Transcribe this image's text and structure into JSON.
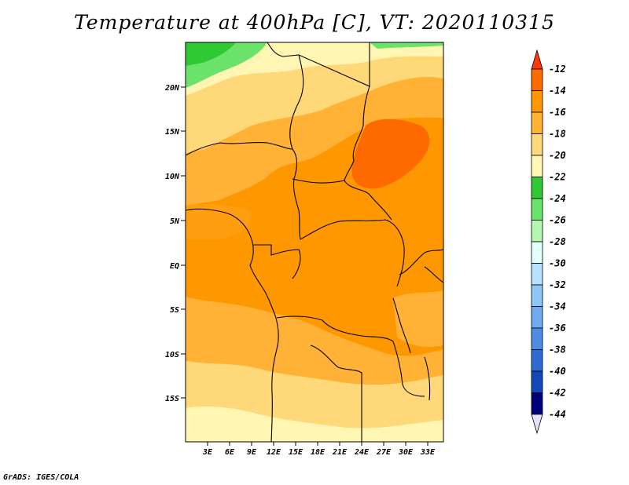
{
  "title": "Temperature at 400hPa [C], VT: 2020110315",
  "credit": "GrADS: IGES/COLA",
  "map": {
    "lat_labels": [
      "20N",
      "15N",
      "10N",
      "5N",
      "EQ",
      "5S",
      "10S",
      "15S"
    ],
    "lon_labels": [
      "3E",
      "6E",
      "9E",
      "12E",
      "15E",
      "18E",
      "21E",
      "24E",
      "27E",
      "30E",
      "33E"
    ]
  },
  "colorbar": {
    "labels": [
      "-12",
      "-14",
      "-16",
      "-18",
      "-20",
      "-22",
      "-24",
      "-26",
      "-28",
      "-30",
      "-32",
      "-34",
      "-36",
      "-38",
      "-40",
      "-42",
      "-44"
    ],
    "colors": [
      "#ff3a08",
      "#ff6a00",
      "#ff9800",
      "#ffb236",
      "#ffd87a",
      "#fff6b4",
      "#2fc934",
      "#6be36b",
      "#b4f7b0",
      "#e2fffa",
      "#b6e2ff",
      "#90c6f6",
      "#70aaf0",
      "#4f8ce4",
      "#2e6bd3",
      "#1448b8",
      "#00007a",
      "#e4e2ff"
    ]
  }
}
